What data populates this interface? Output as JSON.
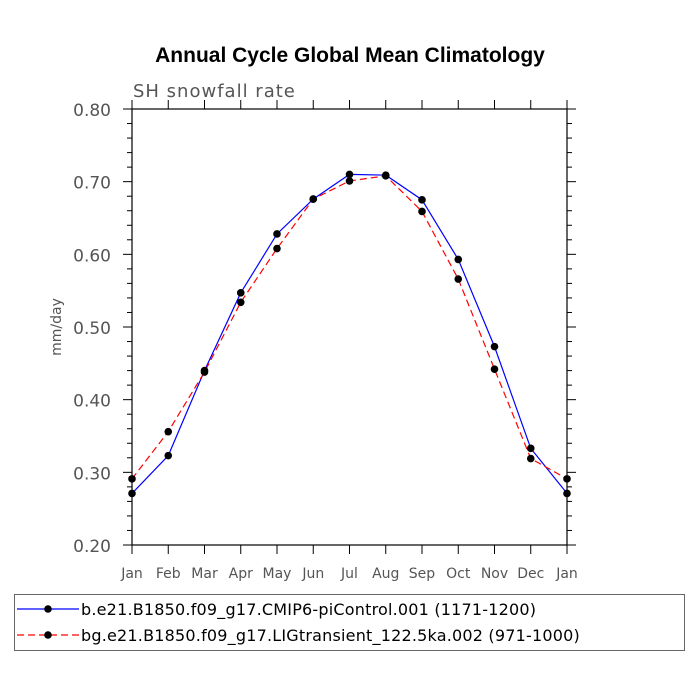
{
  "chart_data": {
    "type": "line",
    "title": "Annual Cycle Global Mean Climatology",
    "subtitle": "SH snowfall rate",
    "ylabel": "mm/day",
    "xlabel": "",
    "categories": [
      "Jan",
      "Feb",
      "Mar",
      "Apr",
      "May",
      "Jun",
      "Jul",
      "Aug",
      "Sep",
      "Oct",
      "Nov",
      "Dec",
      "Jan"
    ],
    "ylim": [
      0.2,
      0.8
    ],
    "yticks": [
      "0.20",
      "0.30",
      "0.40",
      "0.50",
      "0.60",
      "0.70",
      "0.80"
    ],
    "ytick_values": [
      0.2,
      0.3,
      0.4,
      0.5,
      0.6,
      0.7,
      0.8
    ],
    "grid": false,
    "legend_position": "bottom",
    "series": [
      {
        "name": "b.e21.B1850.f09_g17.CMIP6-piControl.001 (1171-1200)",
        "color": "#0000ff",
        "dash": "solid",
        "values": [
          0.271,
          0.323,
          0.44,
          0.547,
          0.628,
          0.676,
          0.71,
          0.709,
          0.675,
          0.593,
          0.473,
          0.333,
          0.271
        ]
      },
      {
        "name": "bg.e21.B1850.f09_g17.LIGtransient_122.5ka.002 (971-1000)",
        "color": "#ff0000",
        "dash": "dashed",
        "values": [
          0.291,
          0.356,
          0.438,
          0.534,
          0.608,
          0.676,
          0.701,
          0.708,
          0.659,
          0.566,
          0.442,
          0.319,
          0.291
        ]
      }
    ]
  }
}
